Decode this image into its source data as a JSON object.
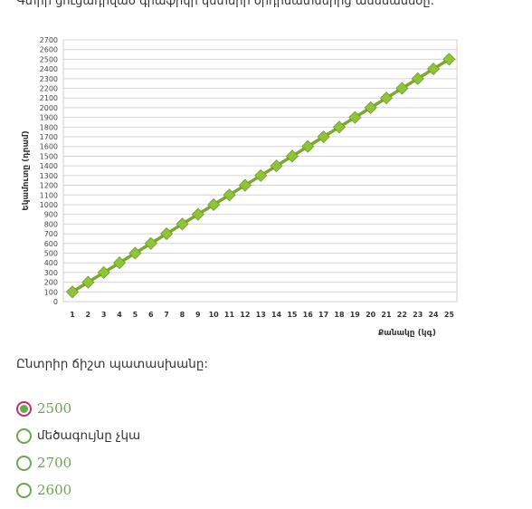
{
  "question": "Գտիր ցուցադրված գրաֆիկի կետերի օրդինատներից ամենամեծը:",
  "prompt": "Ընտրիր ճիշտ պատասխանը:",
  "options": [
    {
      "label": "2500",
      "selected": true,
      "style": "num"
    },
    {
      "label": "մեծագույնը չկա",
      "selected": false,
      "style": "txt"
    },
    {
      "label": "2700",
      "selected": false,
      "style": "num"
    },
    {
      "label": "2600",
      "selected": false,
      "style": "num"
    }
  ],
  "colors": {
    "accent": "#6aa84f",
    "selected_ring": "#c0306b",
    "marker": "#8fc43a",
    "line": "#7aa832"
  },
  "chart_data": {
    "type": "line",
    "xlabel": "Քանակը (կգ)",
    "ylabel": "Եկամուտը (դրամ)",
    "x": [
      1,
      2,
      3,
      4,
      5,
      6,
      7,
      8,
      9,
      10,
      11,
      12,
      13,
      14,
      15,
      16,
      17,
      18,
      19,
      20,
      21,
      22,
      23,
      24,
      25
    ],
    "series": [
      {
        "values": [
          100,
          200,
          300,
          400,
          500,
          600,
          700,
          800,
          900,
          1000,
          1100,
          1200,
          1300,
          1400,
          1500,
          1600,
          1700,
          1800,
          1900,
          2000,
          2100,
          2200,
          2300,
          2400,
          2500
        ]
      }
    ],
    "ylim": [
      0,
      2700
    ],
    "ytick_step": 100,
    "grid": true
  }
}
